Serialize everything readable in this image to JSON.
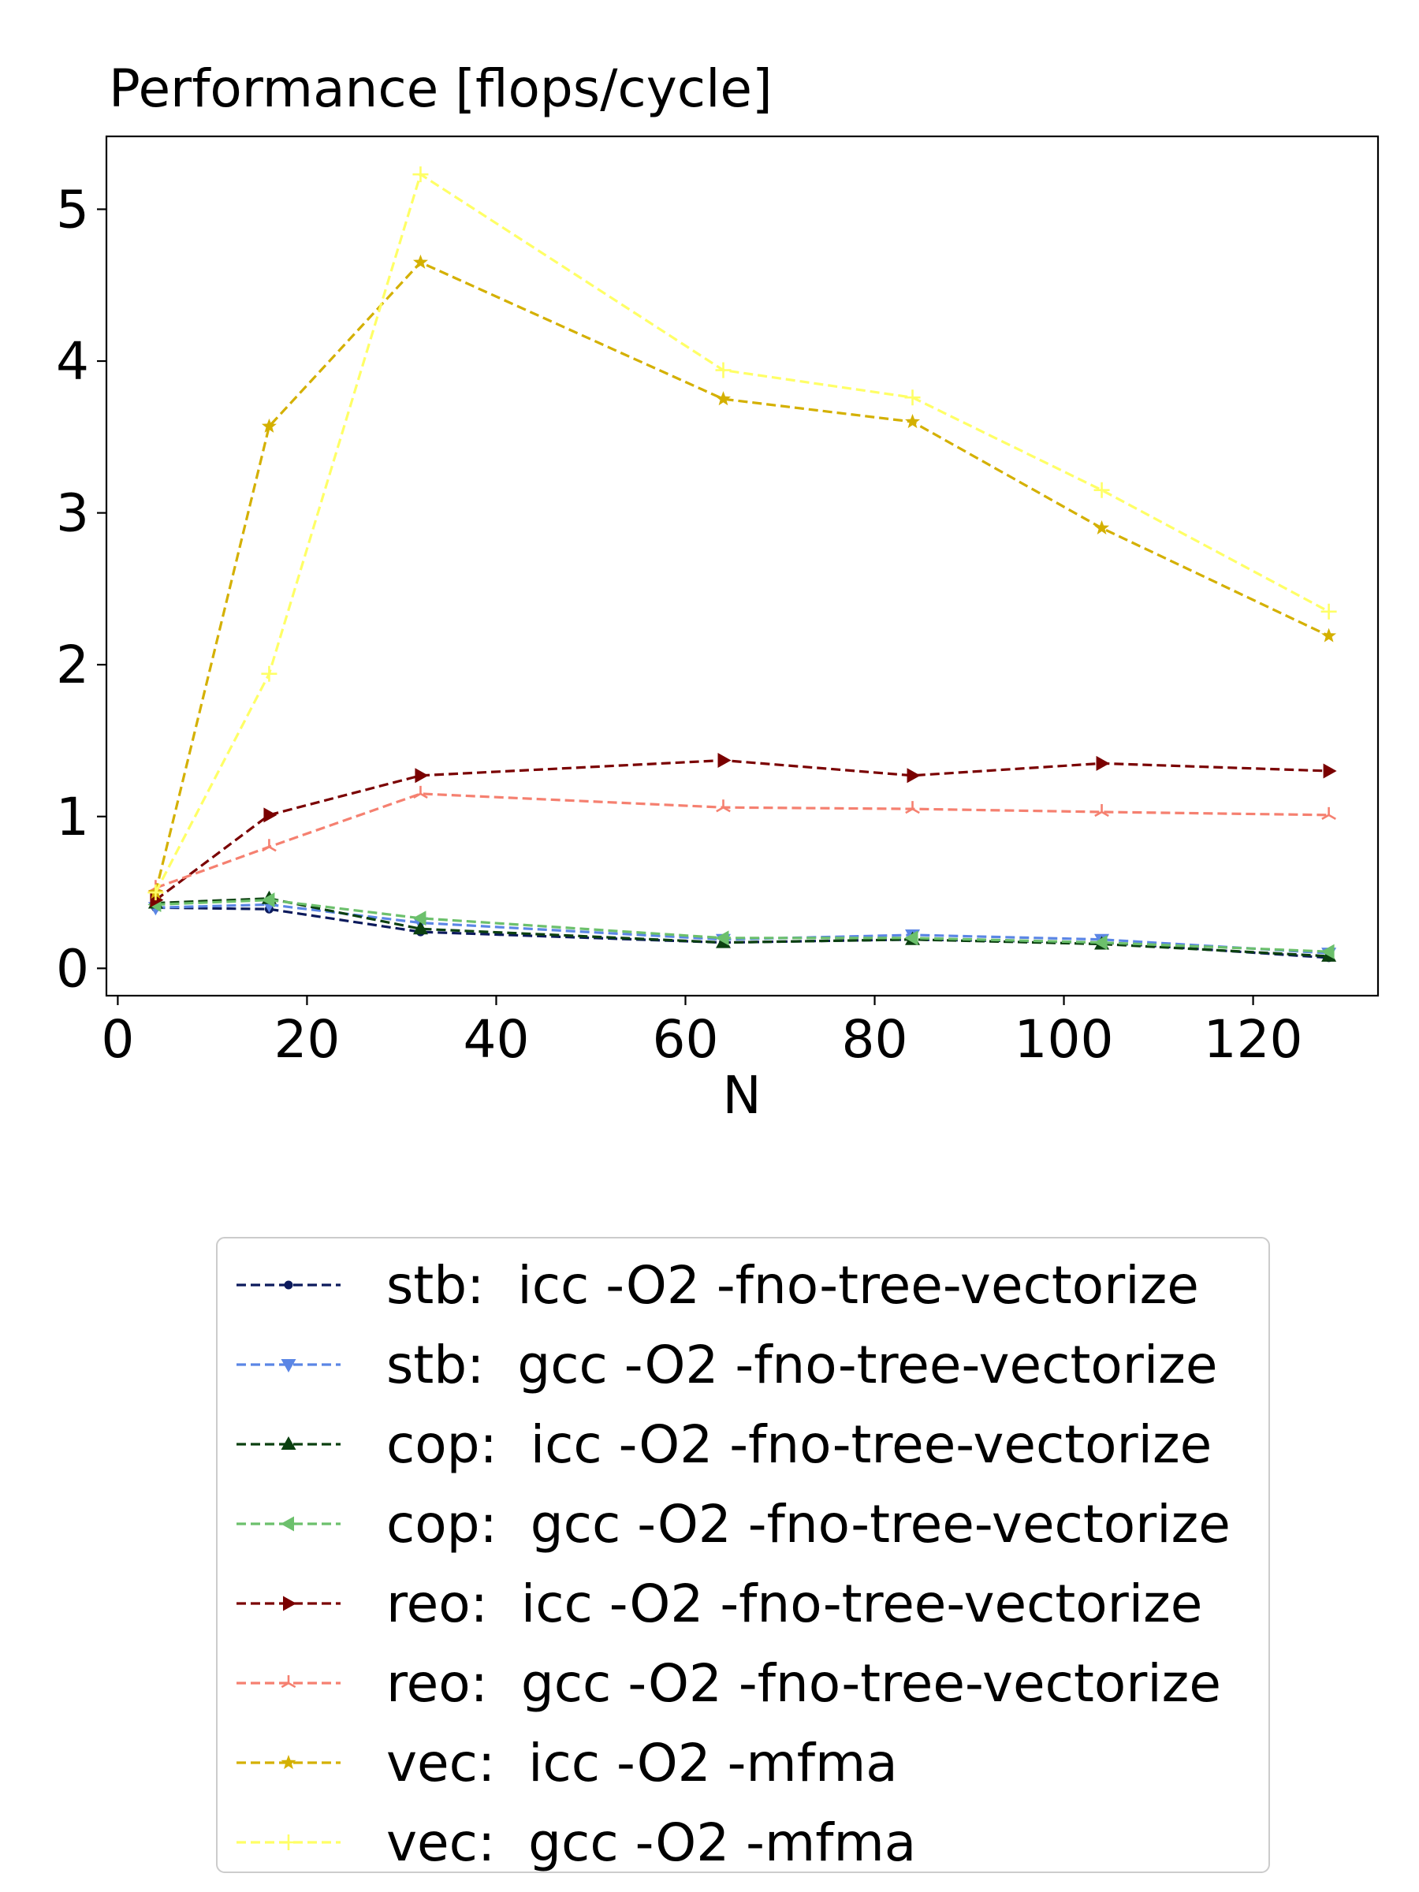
{
  "chart_data": {
    "type": "line",
    "title": "Performance [flops/cycle]",
    "xlabel": "N",
    "ylabel": "",
    "xlim": [
      -1.2,
      133.2
    ],
    "ylim": [
      -0.18,
      5.48
    ],
    "xticks": [
      0,
      20,
      40,
      60,
      80,
      100,
      120
    ],
    "yticks": [
      0,
      1,
      2,
      3,
      4,
      5
    ],
    "grid": false,
    "legend_position": "bottom",
    "x": [
      4,
      16,
      32,
      64,
      84,
      104,
      128
    ],
    "series": [
      {
        "name": "stb:  icc -O2 -fno-tree-vectorize",
        "color": "#0c1a5c",
        "marker": "dot",
        "values": [
          0.4,
          0.39,
          0.24,
          0.17,
          0.19,
          0.17,
          0.07
        ]
      },
      {
        "name": "stb:  gcc -O2 -fno-tree-vectorize",
        "color": "#5b86e5",
        "marker": "triangle-down",
        "values": [
          0.4,
          0.42,
          0.3,
          0.19,
          0.22,
          0.19,
          0.1
        ]
      },
      {
        "name": "cop:  icc -O2 -fno-tree-vectorize",
        "color": "#0b4010",
        "marker": "triangle-up",
        "values": [
          0.43,
          0.46,
          0.26,
          0.17,
          0.19,
          0.16,
          0.08
        ]
      },
      {
        "name": "cop:  gcc -O2 -fno-tree-vectorize",
        "color": "#6cc06c",
        "marker": "triangle-left",
        "values": [
          0.42,
          0.45,
          0.33,
          0.2,
          0.2,
          0.17,
          0.11
        ]
      },
      {
        "name": "reo:  icc -O2 -fno-tree-vectorize",
        "color": "#7a0000",
        "marker": "triangle-right",
        "values": [
          0.45,
          1.01,
          1.27,
          1.37,
          1.27,
          1.35,
          1.3
        ]
      },
      {
        "name": "reo:  gcc -O2 -fno-tree-vectorize",
        "color": "#f58070",
        "marker": "tri",
        "values": [
          0.53,
          0.8,
          1.15,
          1.06,
          1.05,
          1.03,
          1.01
        ]
      },
      {
        "name": "vec:  icc -O2 -mfma",
        "color": "#d4b000",
        "marker": "star",
        "values": [
          0.5,
          3.57,
          4.65,
          3.75,
          3.6,
          2.9,
          2.19
        ]
      },
      {
        "name": "vec:  gcc -O2 -mfma",
        "color": "#ffff66",
        "marker": "plus",
        "values": [
          0.5,
          1.94,
          5.23,
          3.94,
          3.76,
          3.15,
          2.35
        ]
      }
    ]
  }
}
